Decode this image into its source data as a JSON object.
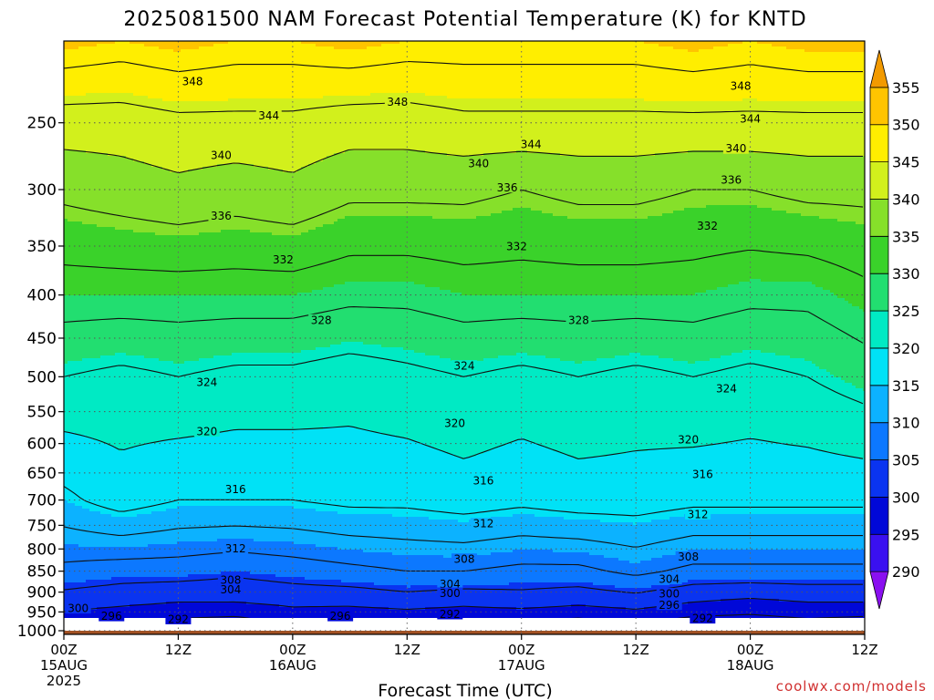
{
  "chart_data": {
    "type": "heatmap",
    "title": "2025081500 NAM Forecast Potential Temperature (K) for KNTD",
    "xlabel": "Forecast Time (UTC)",
    "ylabel": "",
    "credit": "coolwx.com/models",
    "y_scale": "log",
    "ylim": [
      1010,
      200
    ],
    "y_ticks": [
      250,
      300,
      350,
      400,
      450,
      500,
      550,
      600,
      650,
      700,
      750,
      800,
      850,
      900,
      950,
      1000
    ],
    "x_hours_range": [
      0,
      84
    ],
    "x_ticks": [
      {
        "hour": 0,
        "l1": "00Z",
        "l2": "15AUG",
        "l3": "2025"
      },
      {
        "hour": 12,
        "l1": "12Z",
        "l2": "",
        "l3": ""
      },
      {
        "hour": 24,
        "l1": "00Z",
        "l2": "16AUG",
        "l3": ""
      },
      {
        "hour": 36,
        "l1": "12Z",
        "l2": "",
        "l3": ""
      },
      {
        "hour": 48,
        "l1": "00Z",
        "l2": "17AUG",
        "l3": ""
      },
      {
        "hour": 60,
        "l1": "12Z",
        "l2": "",
        "l3": ""
      },
      {
        "hour": 72,
        "l1": "00Z",
        "l2": "18AUG",
        "l3": ""
      },
      {
        "hour": 84,
        "l1": "12Z",
        "l2": "",
        "l3": ""
      }
    ],
    "colorbar": {
      "levels": [
        290,
        295,
        300,
        305,
        310,
        315,
        320,
        325,
        330,
        335,
        340,
        345,
        350,
        355
      ],
      "colors": [
        "#8a10f0",
        "#3a10f0",
        "#0008d8",
        "#0a34f0",
        "#0c78ff",
        "#0cb2ff",
        "#00e2f6",
        "#00eac4",
        "#22de70",
        "#3ad22a",
        "#86e02a",
        "#d2f01c",
        "#ffee00",
        "#ffc400",
        "#f29a00"
      ]
    },
    "contour_interval": 4,
    "surface_color": "#a35224",
    "profile_hours": [
      0,
      6,
      12,
      18,
      24,
      30,
      36,
      42,
      48,
      54,
      60,
      66,
      72,
      78,
      84
    ],
    "profile_pressures": [
      1000,
      925,
      850,
      700,
      500,
      400,
      300,
      250,
      200
    ],
    "theta": [
      [
        296,
        302,
        307,
        315,
        324,
        330,
        337,
        342,
        351
      ],
      [
        294,
        301,
        306,
        318,
        323,
        330,
        338,
        342,
        350
      ],
      [
        293,
        300,
        306,
        316,
        324,
        330,
        339,
        343,
        351
      ],
      [
        292,
        300,
        305,
        316,
        323,
        330,
        338,
        343,
        350
      ],
      [
        295,
        301,
        306,
        316,
        323,
        330,
        339,
        343,
        350
      ],
      [
        294,
        301,
        307,
        317,
        322,
        329,
        337,
        342,
        351
      ],
      [
        294,
        302,
        308,
        317,
        323,
        329,
        337,
        342,
        350
      ],
      [
        294,
        301,
        308,
        318,
        324,
        330,
        337,
        343,
        350
      ],
      [
        293,
        302,
        307,
        317,
        323,
        330,
        336,
        343,
        350
      ],
      [
        292,
        301,
        307,
        318,
        324,
        330,
        337,
        343,
        350
      ],
      [
        294,
        302,
        309,
        318,
        323,
        330,
        337,
        343,
        350
      ],
      [
        292,
        300,
        307,
        317,
        324,
        330,
        336,
        343,
        351
      ],
      [
        292,
        299,
        307,
        317,
        323,
        329,
        336,
        343,
        350
      ],
      [
        293,
        300,
        307,
        317,
        324,
        329,
        337,
        343,
        351
      ],
      [
        292,
        300,
        307,
        317,
        326,
        331,
        337,
        343,
        351
      ]
    ],
    "contour_labels": [
      {
        "value": "348",
        "hour": 13.5,
        "p": 223
      },
      {
        "value": "348",
        "hour": 35.0,
        "p": 236
      },
      {
        "value": "348",
        "hour": 71.0,
        "p": 226
      },
      {
        "value": "344",
        "hour": 21.5,
        "p": 245
      },
      {
        "value": "344",
        "hour": 49.0,
        "p": 265
      },
      {
        "value": "344",
        "hour": 72.0,
        "p": 247
      },
      {
        "value": "340",
        "hour": 16.5,
        "p": 273
      },
      {
        "value": "340",
        "hour": 43.5,
        "p": 279
      },
      {
        "value": "340",
        "hour": 70.5,
        "p": 268
      },
      {
        "value": "336",
        "hour": 16.5,
        "p": 322
      },
      {
        "value": "336",
        "hour": 46.5,
        "p": 298
      },
      {
        "value": "336",
        "hour": 70.0,
        "p": 292
      },
      {
        "value": "332",
        "hour": 23.0,
        "p": 363
      },
      {
        "value": "332",
        "hour": 47.5,
        "p": 350
      },
      {
        "value": "332",
        "hour": 67.5,
        "p": 331
      },
      {
        "value": "328",
        "hour": 27.0,
        "p": 428
      },
      {
        "value": "328",
        "hour": 54.0,
        "p": 428
      },
      {
        "value": "324",
        "hour": 15.0,
        "p": 507
      },
      {
        "value": "324",
        "hour": 42.0,
        "p": 485
      },
      {
        "value": "324",
        "hour": 69.5,
        "p": 516
      },
      {
        "value": "320",
        "hour": 15.0,
        "p": 580
      },
      {
        "value": "320",
        "hour": 41.0,
        "p": 567
      },
      {
        "value": "320",
        "hour": 65.5,
        "p": 593
      },
      {
        "value": "316",
        "hour": 18.0,
        "p": 679
      },
      {
        "value": "316",
        "hour": 44.0,
        "p": 663
      },
      {
        "value": "316",
        "hour": 67.0,
        "p": 652
      },
      {
        "value": "312",
        "hour": 18.0,
        "p": 798
      },
      {
        "value": "312",
        "hour": 44.0,
        "p": 746
      },
      {
        "value": "312",
        "hour": 66.5,
        "p": 727
      },
      {
        "value": "308",
        "hour": 17.5,
        "p": 870
      },
      {
        "value": "308",
        "hour": 42.0,
        "p": 822
      },
      {
        "value": "308",
        "hour": 65.5,
        "p": 817
      },
      {
        "value": "304",
        "hour": 17.5,
        "p": 893
      },
      {
        "value": "304",
        "hour": 40.5,
        "p": 880
      },
      {
        "value": "304",
        "hour": 63.5,
        "p": 868
      },
      {
        "value": "300",
        "hour": 1.5,
        "p": 940
      },
      {
        "value": "300",
        "hour": 40.5,
        "p": 902
      },
      {
        "value": "300",
        "hour": 63.5,
        "p": 903
      },
      {
        "value": "296",
        "hour": 5.0,
        "p": 960
      },
      {
        "value": "296",
        "hour": 29.0,
        "p": 960
      },
      {
        "value": "296",
        "hour": 63.5,
        "p": 931
      },
      {
        "value": "292",
        "hour": 12.0,
        "p": 968
      },
      {
        "value": "292",
        "hour": 40.5,
        "p": 955
      },
      {
        "value": "292",
        "hour": 67.0,
        "p": 966
      }
    ]
  }
}
